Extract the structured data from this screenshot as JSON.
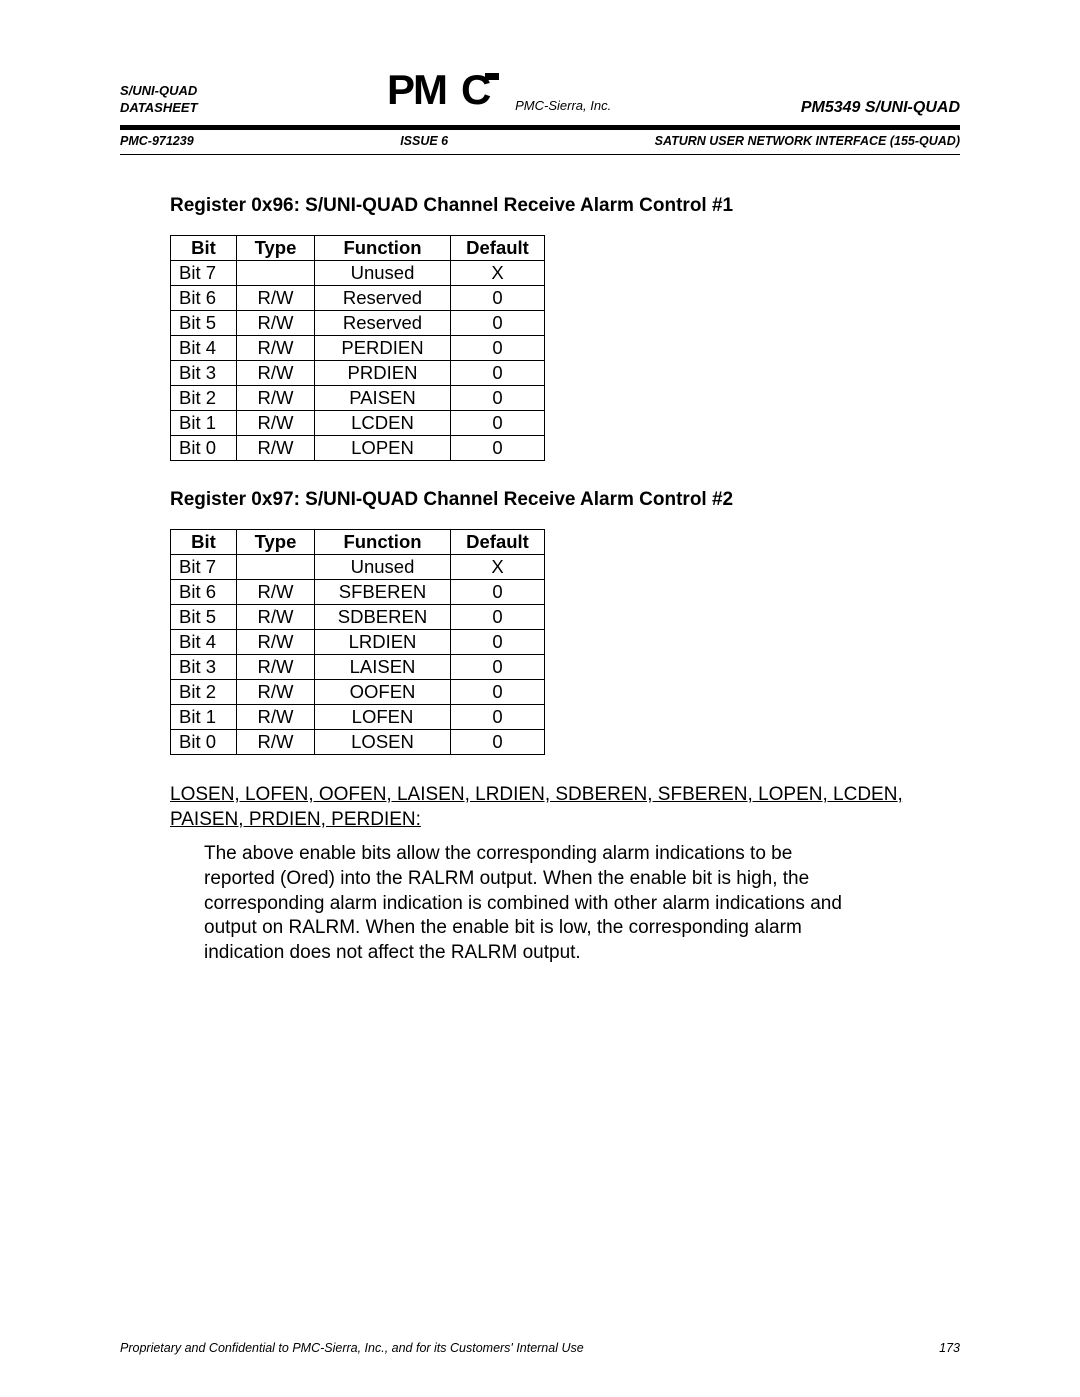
{
  "header": {
    "left_line1": "S/UNI-QUAD",
    "left_line2": "DATASHEET",
    "logo_text": "PMC",
    "logo_sub": "PMC-Sierra, Inc.",
    "right": "PM5349 S/UNI-QUAD",
    "row2_left": "PMC-971239",
    "row2_center": "ISSUE 6",
    "row2_right": "SATURN USER NETWORK INTERFACE (155-QUAD)"
  },
  "section1": {
    "title": "Register 0x96: S/UNI-QUAD Channel Receive Alarm Control #1",
    "columns": [
      "Bit",
      "Type",
      "Function",
      "Default"
    ],
    "rows": [
      [
        "Bit 7",
        "",
        "Unused",
        "X"
      ],
      [
        "Bit 6",
        "R/W",
        "Reserved",
        "0"
      ],
      [
        "Bit 5",
        "R/W",
        "Reserved",
        "0"
      ],
      [
        "Bit 4",
        "R/W",
        "PERDIEN",
        "0"
      ],
      [
        "Bit 3",
        "R/W",
        "PRDIEN",
        "0"
      ],
      [
        "Bit 2",
        "R/W",
        "PAISEN",
        "0"
      ],
      [
        "Bit 1",
        "R/W",
        "LCDEN",
        "0"
      ],
      [
        "Bit 0",
        "R/W",
        "LOPEN",
        "0"
      ]
    ]
  },
  "section2": {
    "title": "Register 0x97: S/UNI-QUAD Channel Receive Alarm Control #2",
    "columns": [
      "Bit",
      "Type",
      "Function",
      "Default"
    ],
    "rows": [
      [
        "Bit 7",
        "",
        "Unused",
        "X"
      ],
      [
        "Bit 6",
        "R/W",
        "SFBEREN",
        "0"
      ],
      [
        "Bit 5",
        "R/W",
        "SDBEREN",
        "0"
      ],
      [
        "Bit 4",
        "R/W",
        "LRDIEN",
        "0"
      ],
      [
        "Bit 3",
        "R/W",
        "LAISEN",
        "0"
      ],
      [
        "Bit 2",
        "R/W",
        "OOFEN",
        "0"
      ],
      [
        "Bit 1",
        "R/W",
        "LOFEN",
        "0"
      ],
      [
        "Bit 0",
        "R/W",
        "LOSEN",
        "0"
      ]
    ]
  },
  "paragraph": {
    "head": "LOSEN, LOFEN, OOFEN, LAISEN, LRDIEN, SDBEREN, SFBEREN, LOPEN, LCDEN, PAISEN, PRDIEN, PERDIEN:",
    "body": "The above enable bits allow the corresponding alarm indications to be reported (Ored) into the RALRM output.  When the enable bit is high, the corresponding alarm indication is combined with other alarm indications and output on RALRM.  When the enable bit is low, the corresponding alarm indication does not affect the RALRM output."
  },
  "footer": {
    "left": "Proprietary and Confidential to PMC-Sierra, Inc., and for its Customers' Internal Use",
    "page": "173"
  }
}
